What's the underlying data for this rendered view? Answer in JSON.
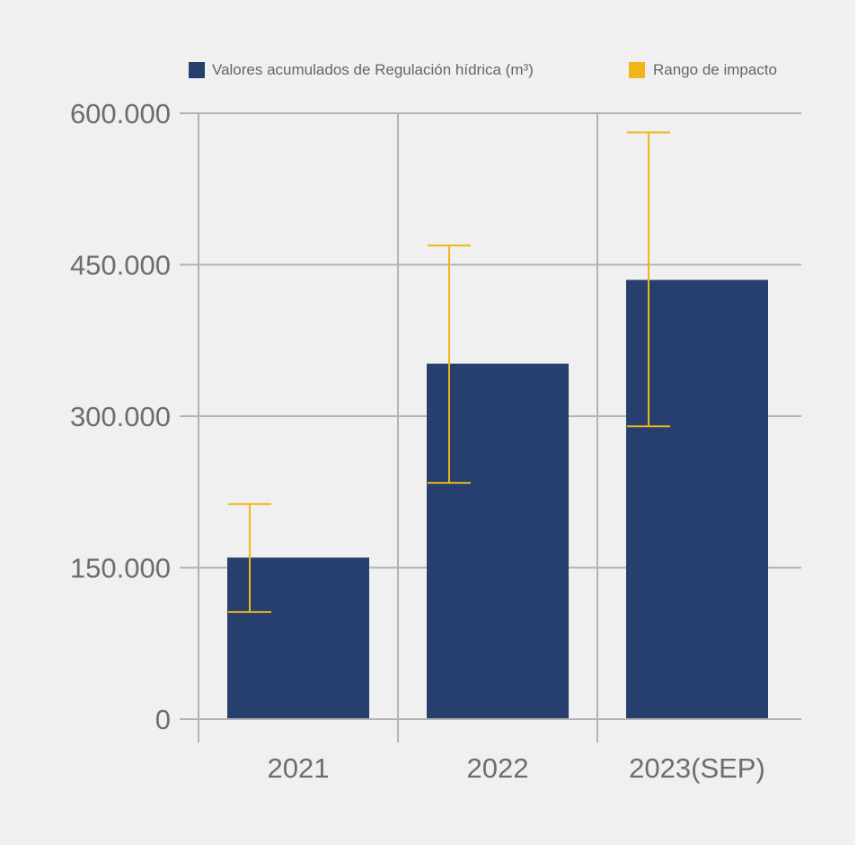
{
  "chart_data": {
    "type": "bar",
    "title": "",
    "xlabel": "",
    "ylabel": "",
    "categories": [
      "2021",
      "2022",
      "2023(SEP)"
    ],
    "series": [
      {
        "name": "Valores acumulados de Regulación hídrica (m³)",
        "values": [
          160000,
          352000,
          435000
        ],
        "color": "#263f6e"
      }
    ],
    "error_range": {
      "name": "Rango de impacto",
      "low": [
        106000,
        234000,
        290000
      ],
      "high": [
        213000,
        469000,
        581000
      ],
      "color": "#f0b619"
    },
    "ylim": [
      0,
      600000
    ],
    "yticks": [
      0,
      150000,
      300000,
      450000,
      600000
    ],
    "ytick_labels": [
      "0",
      "150.000",
      "300.000",
      "450.000",
      "600.000"
    ],
    "grid": true,
    "legend_position": "top"
  }
}
